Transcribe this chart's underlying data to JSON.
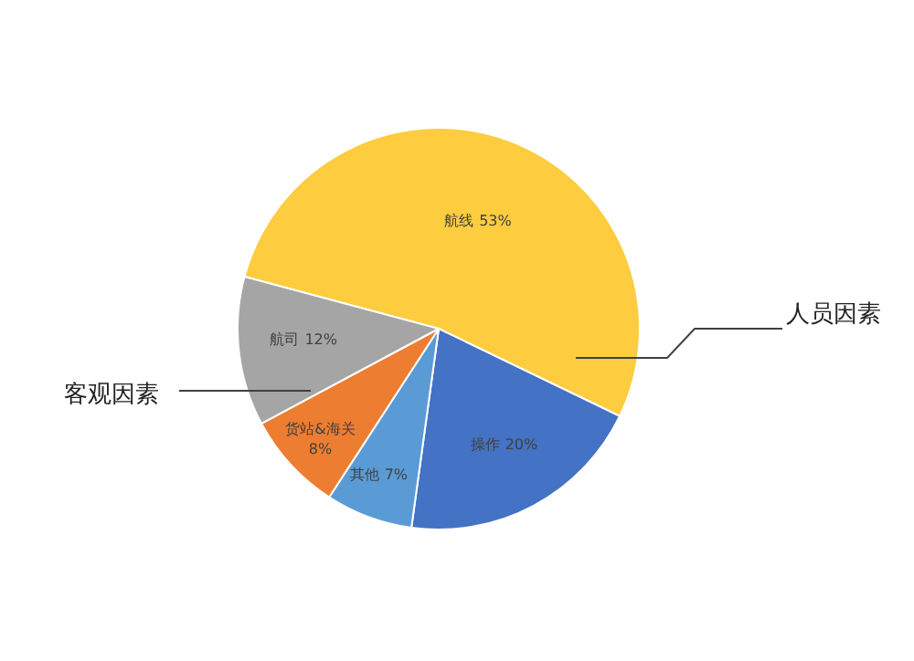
{
  "chart_data": {
    "type": "pie",
    "categories": [
      "航线",
      "操作",
      "其他",
      "货站&海关",
      "航司"
    ],
    "values": [
      53,
      20,
      7,
      8,
      12
    ],
    "colors": [
      "#fdcc3f",
      "#4472c4",
      "#5b9bd5",
      "#ed7d31",
      "#a5a5a5"
    ],
    "value_labels": [
      "53%",
      "20%",
      "7%",
      "8%",
      "12%"
    ],
    "annotations": [
      "客观因素",
      "人员因素"
    ]
  }
}
